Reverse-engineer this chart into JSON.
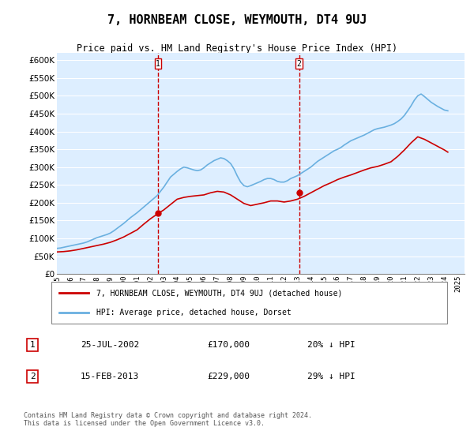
{
  "title": "7, HORNBEAM CLOSE, WEYMOUTH, DT4 9UJ",
  "subtitle": "Price paid vs. HM Land Registry's House Price Index (HPI)",
  "legend_line1": "7, HORNBEAM CLOSE, WEYMOUTH, DT4 9UJ (detached house)",
  "legend_line2": "HPI: Average price, detached house, Dorset",
  "annotation1_label": "1",
  "annotation1_date": "25-JUL-2002",
  "annotation1_price": "£170,000",
  "annotation1_hpi": "20% ↓ HPI",
  "annotation2_label": "2",
  "annotation2_date": "15-FEB-2013",
  "annotation2_price": "£229,000",
  "annotation2_hpi": "29% ↓ HPI",
  "footer": "Contains HM Land Registry data © Crown copyright and database right 2024.\nThis data is licensed under the Open Government Licence v3.0.",
  "hpi_color": "#6ab0e0",
  "price_color": "#cc0000",
  "vline_color": "#cc0000",
  "background_color": "#ffffff",
  "plot_bg_color": "#ddeeff",
  "ylim": [
    0,
    620000
  ],
  "yticks": [
    0,
    50000,
    100000,
    150000,
    200000,
    250000,
    300000,
    350000,
    400000,
    450000,
    500000,
    550000,
    600000
  ],
  "xlim_start": 1995.0,
  "xlim_end": 2025.5,
  "vline1_x": 2002.56,
  "vline2_x": 2013.12,
  "sale1_x": 2002.56,
  "sale1_y": 170000,
  "sale2_x": 2013.12,
  "sale2_y": 229000,
  "hpi_x": [
    1995,
    1995.25,
    1995.5,
    1995.75,
    1996,
    1996.25,
    1996.5,
    1996.75,
    1997,
    1997.25,
    1997.5,
    1997.75,
    1998,
    1998.25,
    1998.5,
    1998.75,
    1999,
    1999.25,
    1999.5,
    1999.75,
    2000,
    2000.25,
    2000.5,
    2000.75,
    2001,
    2001.25,
    2001.5,
    2001.75,
    2002,
    2002.25,
    2002.5,
    2002.75,
    2003,
    2003.25,
    2003.5,
    2003.75,
    2004,
    2004.25,
    2004.5,
    2004.75,
    2005,
    2005.25,
    2005.5,
    2005.75,
    2006,
    2006.25,
    2006.5,
    2006.75,
    2007,
    2007.25,
    2007.5,
    2007.75,
    2008,
    2008.25,
    2008.5,
    2008.75,
    2009,
    2009.25,
    2009.5,
    2009.75,
    2010,
    2010.25,
    2010.5,
    2010.75,
    2011,
    2011.25,
    2011.5,
    2011.75,
    2012,
    2012.25,
    2012.5,
    2012.75,
    2013,
    2013.25,
    2013.5,
    2013.75,
    2014,
    2014.25,
    2014.5,
    2014.75,
    2015,
    2015.25,
    2015.5,
    2015.75,
    2016,
    2016.25,
    2016.5,
    2016.75,
    2017,
    2017.25,
    2017.5,
    2017.75,
    2018,
    2018.25,
    2018.5,
    2018.75,
    2019,
    2019.25,
    2019.5,
    2019.75,
    2020,
    2020.25,
    2020.5,
    2020.75,
    2021,
    2021.25,
    2021.5,
    2021.75,
    2022,
    2022.25,
    2022.5,
    2022.75,
    2023,
    2023.25,
    2023.5,
    2023.75,
    2024,
    2024.25
  ],
  "hpi_y": [
    72000,
    73000,
    75000,
    77000,
    79000,
    81000,
    83000,
    85000,
    87000,
    90000,
    94000,
    98000,
    102000,
    105000,
    108000,
    111000,
    115000,
    121000,
    128000,
    135000,
    142000,
    150000,
    158000,
    165000,
    172000,
    180000,
    188000,
    196000,
    204000,
    212000,
    220000,
    232000,
    244000,
    258000,
    272000,
    280000,
    288000,
    295000,
    300000,
    298000,
    295000,
    292000,
    290000,
    292000,
    298000,
    306000,
    312000,
    318000,
    322000,
    326000,
    324000,
    318000,
    310000,
    295000,
    275000,
    258000,
    248000,
    245000,
    248000,
    252000,
    256000,
    260000,
    265000,
    268000,
    268000,
    265000,
    260000,
    258000,
    258000,
    262000,
    268000,
    272000,
    276000,
    282000,
    288000,
    294000,
    300000,
    308000,
    316000,
    322000,
    328000,
    334000,
    340000,
    346000,
    350000,
    355000,
    362000,
    368000,
    374000,
    378000,
    382000,
    386000,
    390000,
    395000,
    400000,
    405000,
    408000,
    410000,
    412000,
    415000,
    418000,
    422000,
    428000,
    435000,
    445000,
    458000,
    472000,
    488000,
    500000,
    505000,
    498000,
    490000,
    482000,
    476000,
    470000,
    465000,
    460000,
    458000
  ],
  "price_x": [
    1995,
    1995.5,
    1996,
    1996.5,
    1997,
    1997.5,
    1998,
    1998.5,
    1999,
    1999.5,
    2000,
    2000.5,
    2001,
    2001.5,
    2002,
    2002.5,
    2003,
    2003.5,
    2004,
    2004.5,
    2005,
    2005.5,
    2006,
    2006.5,
    2007,
    2007.5,
    2008,
    2008.5,
    2009,
    2009.5,
    2010,
    2010.5,
    2011,
    2011.5,
    2012,
    2012.5,
    2013,
    2013.5,
    2014,
    2014.5,
    2015,
    2015.5,
    2016,
    2016.5,
    2017,
    2017.5,
    2018,
    2018.5,
    2019,
    2019.5,
    2020,
    2020.5,
    2021,
    2021.5,
    2022,
    2022.5,
    2023,
    2023.5,
    2024,
    2024.25
  ],
  "price_y": [
    62000,
    63000,
    65000,
    68000,
    72000,
    76000,
    80000,
    84000,
    89000,
    96000,
    104000,
    114000,
    124000,
    140000,
    155000,
    168000,
    180000,
    195000,
    210000,
    215000,
    218000,
    220000,
    222000,
    228000,
    232000,
    230000,
    222000,
    210000,
    198000,
    192000,
    196000,
    200000,
    205000,
    205000,
    202000,
    205000,
    210000,
    218000,
    228000,
    238000,
    248000,
    256000,
    265000,
    272000,
    278000,
    285000,
    292000,
    298000,
    302000,
    308000,
    315000,
    330000,
    348000,
    368000,
    385000,
    378000,
    368000,
    358000,
    348000,
    342000
  ]
}
